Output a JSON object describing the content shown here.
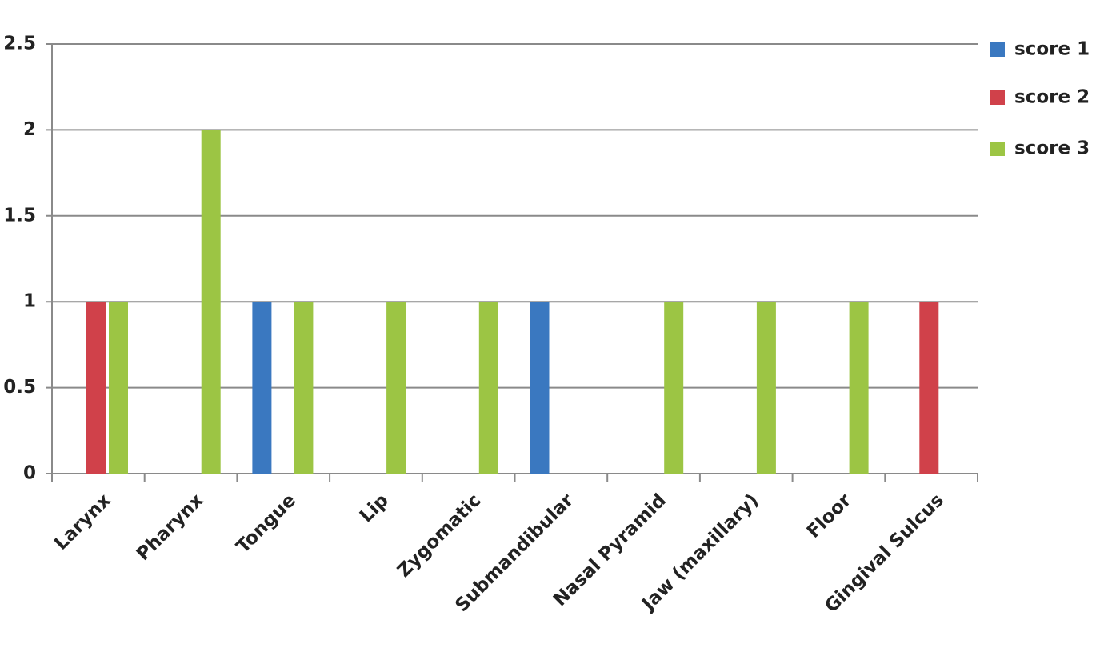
{
  "chart_data": {
    "type": "bar",
    "categories": [
      "Larynx",
      "Pharynx",
      "Tongue",
      "Lip",
      "Zygomatic",
      "Submandibular",
      "Nasal Pyramid",
      "Jaw (maxillary)",
      "Floor",
      "Gingival Sulcus"
    ],
    "series": [
      {
        "name": "score 1",
        "color": "#3a78c0",
        "values": [
          0,
          0,
          1,
          0,
          0,
          1,
          0,
          0,
          0,
          0
        ]
      },
      {
        "name": "score 2",
        "color": "#d0414a",
        "values": [
          1,
          0,
          0,
          0,
          0,
          0,
          0,
          0,
          0,
          1
        ]
      },
      {
        "name": "score 3",
        "color": "#9cc544",
        "values": [
          1,
          2,
          1,
          1,
          1,
          0,
          1,
          1,
          1,
          0
        ]
      }
    ],
    "ylim": [
      0,
      2.5
    ],
    "yticks": [
      0,
      0.5,
      1,
      1.5,
      2,
      2.5
    ],
    "grid": true,
    "legend": "right"
  }
}
